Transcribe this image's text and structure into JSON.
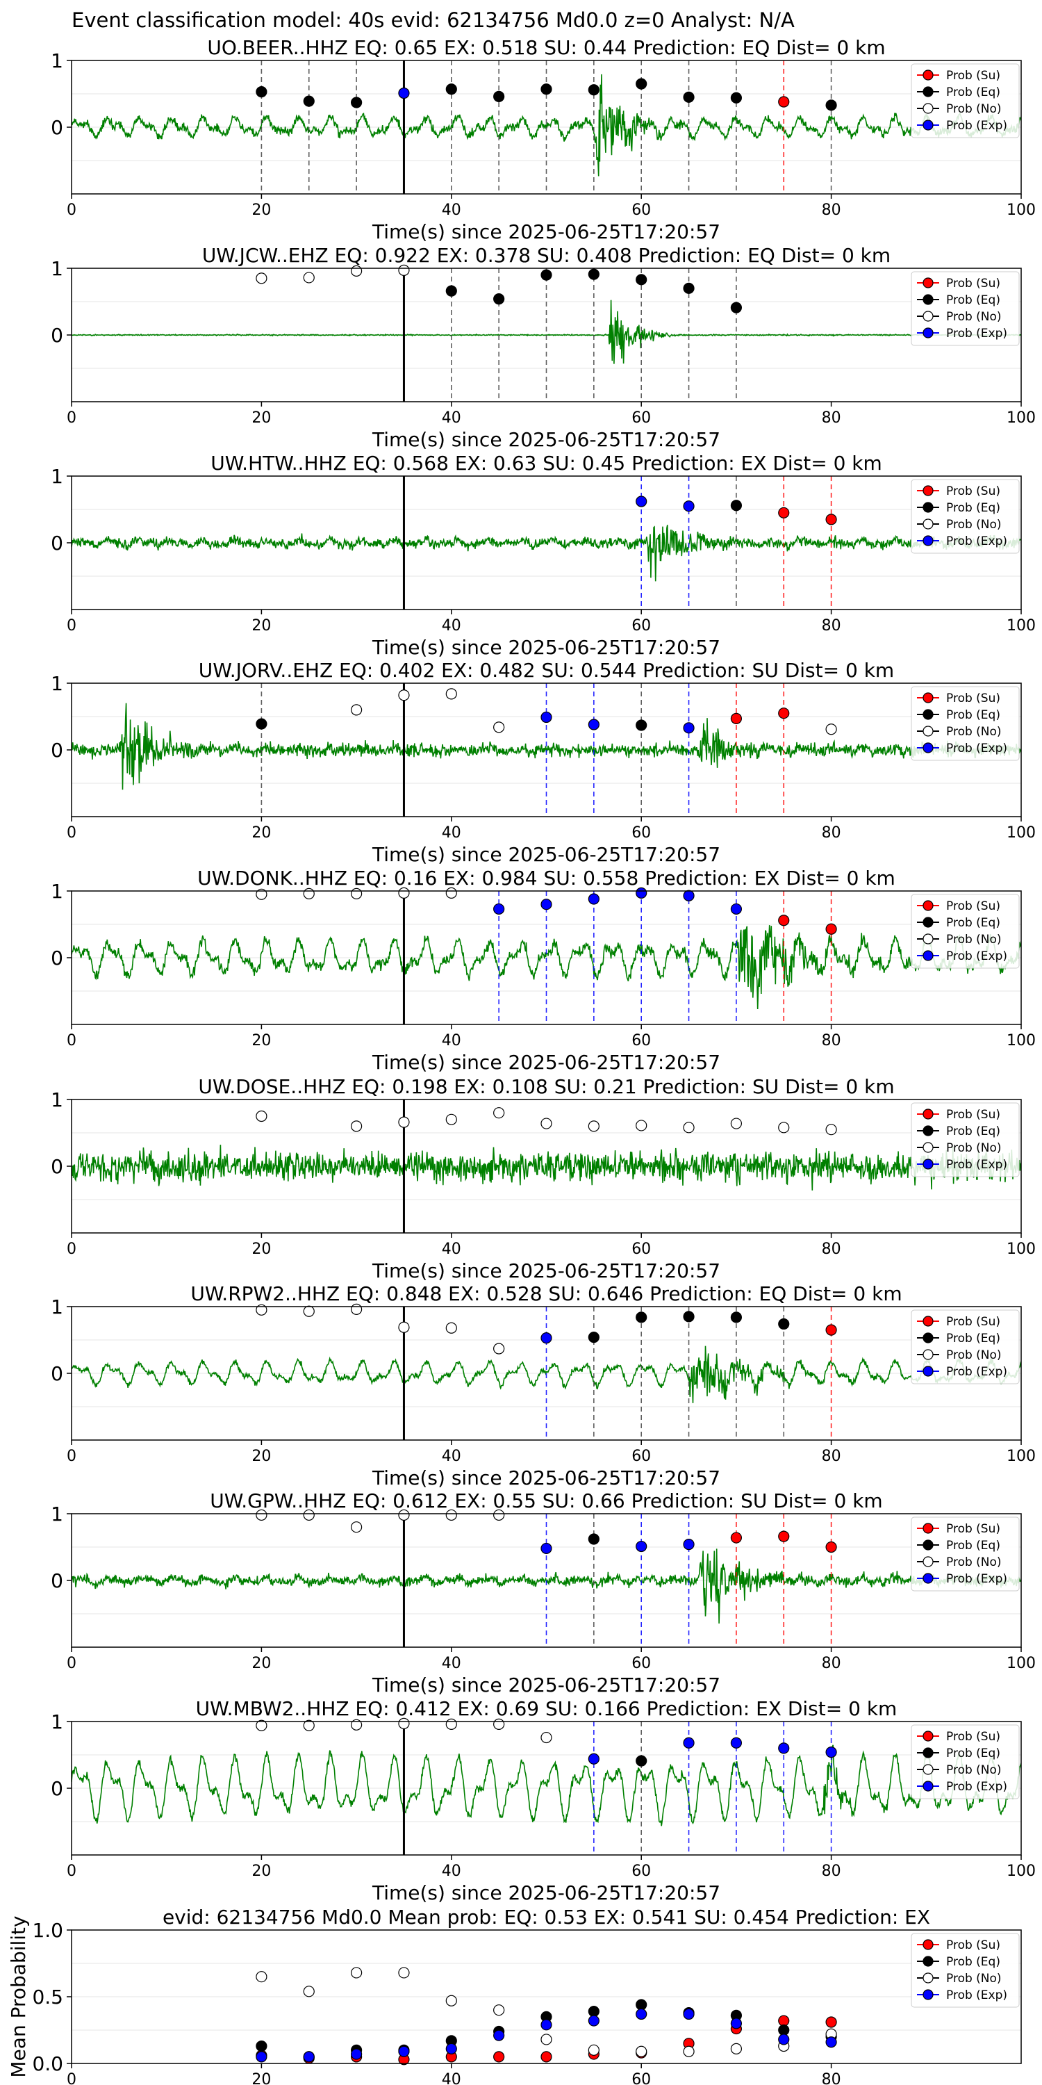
{
  "figure_title": "Event classification model: 40s evid: 62134756 Md0.0 z=0 Analyst: N/A",
  "colors": {
    "waveform": "#008000",
    "su": "#ff0000",
    "eq": "#000000",
    "no": "#ffffff",
    "exp": "#0000ff"
  },
  "legend": {
    "placement": "top-right",
    "entries": [
      "Prob (Su)",
      "Prob (Eq)",
      "Prob (No)",
      "Prob (Exp)"
    ]
  },
  "chart_data": [
    {
      "type": "scatter",
      "title": "UO.BEER..HHZ   EQ: 0.65  EX: 0.518  SU: 0.44   Prediction: EQ    Dist= 0 km",
      "xlabel": "Time(s) since 2025-06-25T17:20:57",
      "ylabel": "",
      "xlim": [
        0,
        100
      ],
      "ylim": [
        -1,
        1
      ],
      "x_ticks": [
        0,
        20,
        40,
        60,
        80,
        100
      ],
      "y_ticks": [
        0,
        1
      ],
      "grid": true,
      "waveform": {
        "seed": 11,
        "noise": 0.06,
        "osc": 0.1,
        "bursts": [
          [
            55,
            0.8,
            6
          ]
        ]
      },
      "window_line_x": 35,
      "points": [
        {
          "x": 20,
          "v": 0.53,
          "c": "eq"
        },
        {
          "x": 25,
          "v": 0.39,
          "c": "eq"
        },
        {
          "x": 30,
          "v": 0.37,
          "c": "eq"
        },
        {
          "x": 35,
          "v": 0.51,
          "c": "exp"
        },
        {
          "x": 40,
          "v": 0.57,
          "c": "eq"
        },
        {
          "x": 45,
          "v": 0.46,
          "c": "eq"
        },
        {
          "x": 50,
          "v": 0.57,
          "c": "eq"
        },
        {
          "x": 55,
          "v": 0.56,
          "c": "eq"
        },
        {
          "x": 60,
          "v": 0.65,
          "c": "eq"
        },
        {
          "x": 65,
          "v": 0.45,
          "c": "eq"
        },
        {
          "x": 70,
          "v": 0.44,
          "c": "eq"
        },
        {
          "x": 75,
          "v": 0.38,
          "c": "su"
        },
        {
          "x": 80,
          "v": 0.33,
          "c": "eq"
        }
      ]
    },
    {
      "type": "scatter",
      "title": "UW.JCW..EHZ   EQ: 0.922  EX: 0.378  SU: 0.408   Prediction: EQ    Dist= 0 km",
      "xlabel": "Time(s) since 2025-06-25T17:20:57",
      "ylabel": "",
      "xlim": [
        0,
        100
      ],
      "ylim": [
        -1,
        1
      ],
      "x_ticks": [
        0,
        20,
        40,
        60,
        80,
        100
      ],
      "y_ticks": [
        0,
        1
      ],
      "grid": true,
      "waveform": {
        "seed": 23,
        "noise": 0.008,
        "osc": 0.0,
        "bursts": [
          [
            56.5,
            0.85,
            4
          ]
        ]
      },
      "window_line_x": 35,
      "points": [
        {
          "x": 20,
          "v": 0.85,
          "c": "no"
        },
        {
          "x": 25,
          "v": 0.86,
          "c": "no"
        },
        {
          "x": 30,
          "v": 0.96,
          "c": "no"
        },
        {
          "x": 35,
          "v": 0.97,
          "c": "no"
        },
        {
          "x": 40,
          "v": 0.66,
          "c": "eq"
        },
        {
          "x": 45,
          "v": 0.54,
          "c": "eq"
        },
        {
          "x": 50,
          "v": 0.9,
          "c": "eq"
        },
        {
          "x": 55,
          "v": 0.91,
          "c": "eq"
        },
        {
          "x": 60,
          "v": 0.83,
          "c": "eq"
        },
        {
          "x": 65,
          "v": 0.7,
          "c": "eq"
        },
        {
          "x": 70,
          "v": 0.41,
          "c": "eq"
        }
      ]
    },
    {
      "type": "scatter",
      "title": "UW.HTW..HHZ   EQ: 0.568  EX: 0.63  SU: 0.45   Prediction: EX    Dist= 0 km",
      "xlabel": "Time(s) since 2025-06-25T17:20:57",
      "ylabel": "",
      "xlim": [
        0,
        100
      ],
      "ylim": [
        -1,
        1
      ],
      "x_ticks": [
        0,
        20,
        40,
        60,
        80,
        100
      ],
      "y_ticks": [
        0,
        1
      ],
      "grid": true,
      "waveform": {
        "seed": 37,
        "noise": 0.07,
        "osc": 0.03,
        "bursts": [
          [
            60.5,
            0.65,
            7
          ]
        ]
      },
      "window_line_x": 35,
      "points": [
        {
          "x": 60,
          "v": 0.62,
          "c": "exp"
        },
        {
          "x": 65,
          "v": 0.55,
          "c": "exp"
        },
        {
          "x": 70,
          "v": 0.56,
          "c": "eq"
        },
        {
          "x": 75,
          "v": 0.45,
          "c": "su"
        },
        {
          "x": 80,
          "v": 0.35,
          "c": "su"
        }
      ]
    },
    {
      "type": "scatter",
      "title": "UW.JORV..EHZ   EQ: 0.402  EX: 0.482  SU: 0.544   Prediction: SU    Dist= 0 km",
      "xlabel": "Time(s) since 2025-06-25T17:20:57",
      "ylabel": "",
      "xlim": [
        0,
        100
      ],
      "ylim": [
        -1,
        1
      ],
      "x_ticks": [
        0,
        20,
        40,
        60,
        80,
        100
      ],
      "y_ticks": [
        0,
        1
      ],
      "grid": true,
      "waveform": {
        "seed": 41,
        "noise": 0.09,
        "osc": 0.02,
        "bursts": [
          [
            5,
            0.85,
            6
          ],
          [
            66,
            0.4,
            8
          ]
        ]
      },
      "window_line_x": 35,
      "points": [
        {
          "x": 20,
          "v": 0.39,
          "c": "eq"
        },
        {
          "x": 30,
          "v": 0.6,
          "c": "no"
        },
        {
          "x": 35,
          "v": 0.82,
          "c": "no"
        },
        {
          "x": 40,
          "v": 0.84,
          "c": "no"
        },
        {
          "x": 45,
          "v": 0.34,
          "c": "no"
        },
        {
          "x": 50,
          "v": 0.49,
          "c": "exp"
        },
        {
          "x": 55,
          "v": 0.38,
          "c": "exp"
        },
        {
          "x": 60,
          "v": 0.37,
          "c": "eq"
        },
        {
          "x": 65,
          "v": 0.33,
          "c": "exp"
        },
        {
          "x": 70,
          "v": 0.47,
          "c": "su"
        },
        {
          "x": 75,
          "v": 0.55,
          "c": "su"
        },
        {
          "x": 80,
          "v": 0.31,
          "c": "no"
        }
      ]
    },
    {
      "type": "scatter",
      "title": "UW.DONK..HHZ   EQ: 0.16  EX: 0.984  SU: 0.558   Prediction: EX    Dist= 0 km",
      "xlabel": "Time(s) since 2025-06-25T17:20:57",
      "ylabel": "",
      "xlim": [
        0,
        100
      ],
      "ylim": [
        -1,
        1
      ],
      "x_ticks": [
        0,
        20,
        40,
        60,
        80,
        100
      ],
      "y_ticks": [
        0,
        1
      ],
      "grid": true,
      "waveform": {
        "seed": 53,
        "noise": 0.08,
        "osc": 0.18,
        "bursts": [
          [
            70,
            0.7,
            12
          ]
        ]
      },
      "window_line_x": 35,
      "points": [
        {
          "x": 20,
          "v": 0.95,
          "c": "no"
        },
        {
          "x": 25,
          "v": 0.96,
          "c": "no"
        },
        {
          "x": 30,
          "v": 0.96,
          "c": "no"
        },
        {
          "x": 35,
          "v": 0.97,
          "c": "no"
        },
        {
          "x": 40,
          "v": 0.97,
          "c": "no"
        },
        {
          "x": 45,
          "v": 0.73,
          "c": "exp"
        },
        {
          "x": 50,
          "v": 0.8,
          "c": "exp"
        },
        {
          "x": 55,
          "v": 0.88,
          "c": "exp"
        },
        {
          "x": 60,
          "v": 0.97,
          "c": "exp"
        },
        {
          "x": 65,
          "v": 0.93,
          "c": "exp"
        },
        {
          "x": 70,
          "v": 0.73,
          "c": "exp"
        },
        {
          "x": 75,
          "v": 0.56,
          "c": "su"
        },
        {
          "x": 80,
          "v": 0.43,
          "c": "su"
        }
      ]
    },
    {
      "type": "scatter",
      "title": "UW.DOSE..HHZ   EQ: 0.198  EX: 0.108  SU: 0.21   Prediction: SU    Dist= 0 km",
      "xlabel": "Time(s) since 2025-06-25T17:20:57",
      "ylabel": "",
      "xlim": [
        0,
        100
      ],
      "ylim": [
        -1,
        1
      ],
      "x_ticks": [
        0,
        20,
        40,
        60,
        80,
        100
      ],
      "y_ticks": [
        0,
        1
      ],
      "grid": true,
      "waveform": {
        "seed": 67,
        "noise": 0.22,
        "osc": 0.0,
        "bursts": []
      },
      "window_line_x": 35,
      "points": [
        {
          "x": 20,
          "v": 0.75,
          "c": "no"
        },
        {
          "x": 30,
          "v": 0.6,
          "c": "no"
        },
        {
          "x": 35,
          "v": 0.66,
          "c": "no"
        },
        {
          "x": 40,
          "v": 0.7,
          "c": "no"
        },
        {
          "x": 45,
          "v": 0.8,
          "c": "no"
        },
        {
          "x": 50,
          "v": 0.64,
          "c": "no"
        },
        {
          "x": 55,
          "v": 0.6,
          "c": "no"
        },
        {
          "x": 60,
          "v": 0.61,
          "c": "no"
        },
        {
          "x": 65,
          "v": 0.58,
          "c": "no"
        },
        {
          "x": 70,
          "v": 0.64,
          "c": "no"
        },
        {
          "x": 75,
          "v": 0.58,
          "c": "no"
        },
        {
          "x": 80,
          "v": 0.55,
          "c": "no"
        }
      ]
    },
    {
      "type": "scatter",
      "title": "UW.RPW2..HHZ   EQ: 0.848  EX: 0.528  SU: 0.646   Prediction: EQ    Dist= 0 km",
      "xlabel": "Time(s) since 2025-06-25T17:20:57",
      "ylabel": "",
      "xlim": [
        0,
        100
      ],
      "ylim": [
        -1,
        1
      ],
      "x_ticks": [
        0,
        20,
        40,
        60,
        80,
        100
      ],
      "y_ticks": [
        0,
        1
      ],
      "grid": true,
      "waveform": {
        "seed": 79,
        "noise": 0.04,
        "osc": 0.12,
        "bursts": [
          [
            65,
            0.55,
            10
          ]
        ]
      },
      "window_line_x": 35,
      "points": [
        {
          "x": 20,
          "v": 0.95,
          "c": "no"
        },
        {
          "x": 25,
          "v": 0.93,
          "c": "no"
        },
        {
          "x": 30,
          "v": 0.96,
          "c": "no"
        },
        {
          "x": 35,
          "v": 0.69,
          "c": "no"
        },
        {
          "x": 40,
          "v": 0.68,
          "c": "no"
        },
        {
          "x": 45,
          "v": 0.37,
          "c": "no"
        },
        {
          "x": 50,
          "v": 0.53,
          "c": "exp"
        },
        {
          "x": 55,
          "v": 0.54,
          "c": "eq"
        },
        {
          "x": 60,
          "v": 0.84,
          "c": "eq"
        },
        {
          "x": 65,
          "v": 0.85,
          "c": "eq"
        },
        {
          "x": 70,
          "v": 0.84,
          "c": "eq"
        },
        {
          "x": 75,
          "v": 0.74,
          "c": "eq"
        },
        {
          "x": 80,
          "v": 0.65,
          "c": "su"
        }
      ]
    },
    {
      "type": "scatter",
      "title": "UW.GPW..HHZ   EQ: 0.612  EX: 0.55  SU: 0.66   Prediction: SU    Dist= 0 km",
      "xlabel": "Time(s) since 2025-06-25T17:20:57",
      "ylabel": "",
      "xlim": [
        0,
        100
      ],
      "ylim": [
        -1,
        1
      ],
      "x_ticks": [
        0,
        20,
        40,
        60,
        80,
        100
      ],
      "y_ticks": [
        0,
        1
      ],
      "grid": true,
      "waveform": {
        "seed": 83,
        "noise": 0.07,
        "osc": 0.03,
        "bursts": [
          [
            66,
            0.6,
            9
          ]
        ]
      },
      "window_line_x": 35,
      "points": [
        {
          "x": 20,
          "v": 0.98,
          "c": "no"
        },
        {
          "x": 25,
          "v": 0.98,
          "c": "no"
        },
        {
          "x": 30,
          "v": 0.8,
          "c": "no"
        },
        {
          "x": 35,
          "v": 0.98,
          "c": "no"
        },
        {
          "x": 40,
          "v": 0.98,
          "c": "no"
        },
        {
          "x": 45,
          "v": 0.98,
          "c": "no"
        },
        {
          "x": 50,
          "v": 0.48,
          "c": "exp"
        },
        {
          "x": 55,
          "v": 0.62,
          "c": "eq"
        },
        {
          "x": 60,
          "v": 0.51,
          "c": "exp"
        },
        {
          "x": 65,
          "v": 0.54,
          "c": "exp"
        },
        {
          "x": 70,
          "v": 0.64,
          "c": "su"
        },
        {
          "x": 75,
          "v": 0.66,
          "c": "su"
        },
        {
          "x": 80,
          "v": 0.5,
          "c": "su"
        }
      ]
    },
    {
      "type": "scatter",
      "title": "UW.MBW2..HHZ   EQ: 0.412  EX: 0.69  SU: 0.166   Prediction: EX    Dist= 0 km",
      "xlabel": "Time(s) since 2025-06-25T17:20:57",
      "ylabel": "",
      "xlim": [
        0,
        100
      ],
      "ylim": [
        -1,
        1
      ],
      "x_ticks": [
        0,
        20,
        40,
        60,
        80,
        100
      ],
      "y_ticks": [
        0,
        1
      ],
      "grid": true,
      "waveform": {
        "seed": 97,
        "noise": 0.06,
        "osc": 0.32,
        "bursts": [
          [
            79,
            0.45,
            4
          ]
        ]
      },
      "window_line_x": 35,
      "points": [
        {
          "x": 20,
          "v": 0.94,
          "c": "no"
        },
        {
          "x": 25,
          "v": 0.94,
          "c": "no"
        },
        {
          "x": 30,
          "v": 0.95,
          "c": "no"
        },
        {
          "x": 35,
          "v": 0.97,
          "c": "no"
        },
        {
          "x": 40,
          "v": 0.96,
          "c": "no"
        },
        {
          "x": 45,
          "v": 0.96,
          "c": "no"
        },
        {
          "x": 50,
          "v": 0.76,
          "c": "no"
        },
        {
          "x": 55,
          "v": 0.44,
          "c": "exp"
        },
        {
          "x": 60,
          "v": 0.41,
          "c": "eq"
        },
        {
          "x": 65,
          "v": 0.68,
          "c": "exp"
        },
        {
          "x": 70,
          "v": 0.68,
          "c": "exp"
        },
        {
          "x": 75,
          "v": 0.6,
          "c": "exp"
        },
        {
          "x": 80,
          "v": 0.54,
          "c": "exp"
        }
      ]
    },
    {
      "type": "scatter",
      "title": "evid: 62134756   Md0.0    Mean prob:    EQ: 0.53   EX: 0.541   SU: 0.454    Prediction: EX",
      "xlabel": "",
      "ylabel": "Mean Probability",
      "xlim": [
        0,
        100
      ],
      "ylim": [
        0,
        1
      ],
      "x_ticks": [
        0,
        20,
        40,
        60,
        80
      ],
      "y_ticks": [
        0.0,
        0.5,
        1.0
      ],
      "grid": true,
      "series": [
        {
          "key": "su",
          "x": [
            20,
            25,
            30,
            35,
            40,
            45,
            50,
            55,
            60,
            65,
            70,
            75,
            80
          ],
          "y": [
            0.06,
            0.04,
            0.05,
            0.03,
            0.05,
            0.05,
            0.05,
            0.07,
            0.08,
            0.15,
            0.26,
            0.32,
            0.31
          ]
        },
        {
          "key": "eq",
          "x": [
            20,
            25,
            30,
            35,
            40,
            45,
            50,
            55,
            60,
            65,
            70,
            75,
            80
          ],
          "y": [
            0.13,
            0.05,
            0.1,
            0.1,
            0.17,
            0.24,
            0.35,
            0.39,
            0.44,
            0.38,
            0.36,
            0.25,
            0.2
          ]
        },
        {
          "key": "no",
          "x": [
            20,
            25,
            30,
            35,
            40,
            45,
            50,
            55,
            60,
            65,
            70,
            75,
            80
          ],
          "y": [
            0.65,
            0.54,
            0.68,
            0.68,
            0.47,
            0.4,
            0.18,
            0.1,
            0.09,
            0.09,
            0.11,
            0.13,
            0.22
          ]
        },
        {
          "key": "exp",
          "x": [
            20,
            25,
            30,
            35,
            40,
            45,
            50,
            55,
            60,
            65,
            70,
            75,
            80
          ],
          "y": [
            0.05,
            0.05,
            0.07,
            0.09,
            0.11,
            0.21,
            0.29,
            0.32,
            0.37,
            0.37,
            0.3,
            0.18,
            0.16
          ]
        }
      ]
    }
  ]
}
